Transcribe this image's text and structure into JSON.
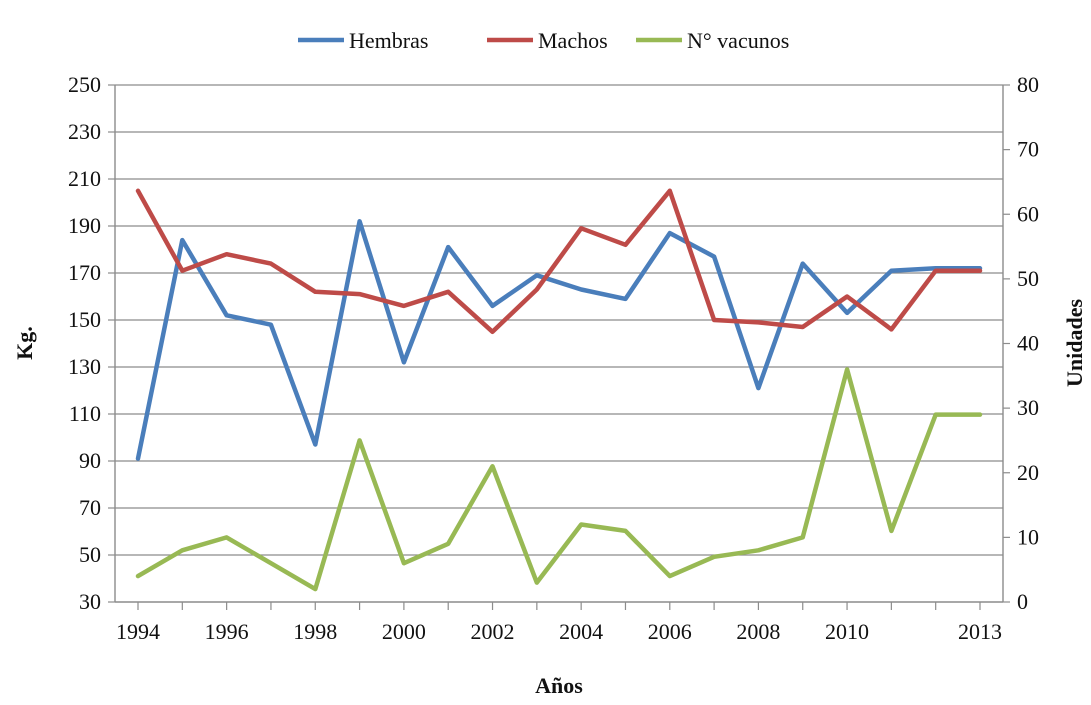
{
  "chart_data": {
    "type": "line",
    "title": "",
    "xlabel": "Años",
    "ylabel": "Kg.",
    "y2label": "Unidades",
    "x": [
      1994,
      1995,
      1996,
      1997,
      1998,
      1999,
      2000,
      2001,
      2002,
      2003,
      2004,
      2005,
      2006,
      2007,
      2008,
      2009,
      2010,
      2011,
      2012,
      2013
    ],
    "x_tick_labels": [
      "1994",
      "1996",
      "1998",
      "2000",
      "2002",
      "2004",
      "2006",
      "2008",
      "2010",
      "2013"
    ],
    "ylim": [
      30,
      250
    ],
    "y_ticks": [
      30,
      50,
      70,
      90,
      110,
      130,
      150,
      170,
      190,
      210,
      230,
      250
    ],
    "y2lim": [
      0,
      80
    ],
    "y2_ticks": [
      0,
      10,
      20,
      30,
      40,
      50,
      60,
      70,
      80
    ],
    "grid": "horizontal",
    "legend_position": "top",
    "series": [
      {
        "name": "Hembras",
        "axis": "left",
        "color": "#4a7ebb",
        "values": [
          91,
          184,
          152,
          148,
          97,
          192,
          132,
          181,
          156,
          169,
          163,
          159,
          187,
          177,
          121,
          174,
          153,
          171,
          172,
          172
        ]
      },
      {
        "name": "Machos",
        "axis": "left",
        "color": "#be4b48",
        "values": [
          205,
          171,
          178,
          174,
          162,
          161,
          156,
          162,
          145,
          163,
          189,
          182,
          205,
          150,
          149,
          147,
          160,
          146,
          171,
          171
        ]
      },
      {
        "name": "N° vacunos",
        "axis": "right",
        "color": "#98b954",
        "values": [
          4,
          8,
          10,
          6,
          2,
          25,
          6,
          9,
          21,
          3,
          12,
          11,
          4,
          7,
          8,
          10,
          36,
          11,
          29,
          29
        ]
      }
    ]
  }
}
